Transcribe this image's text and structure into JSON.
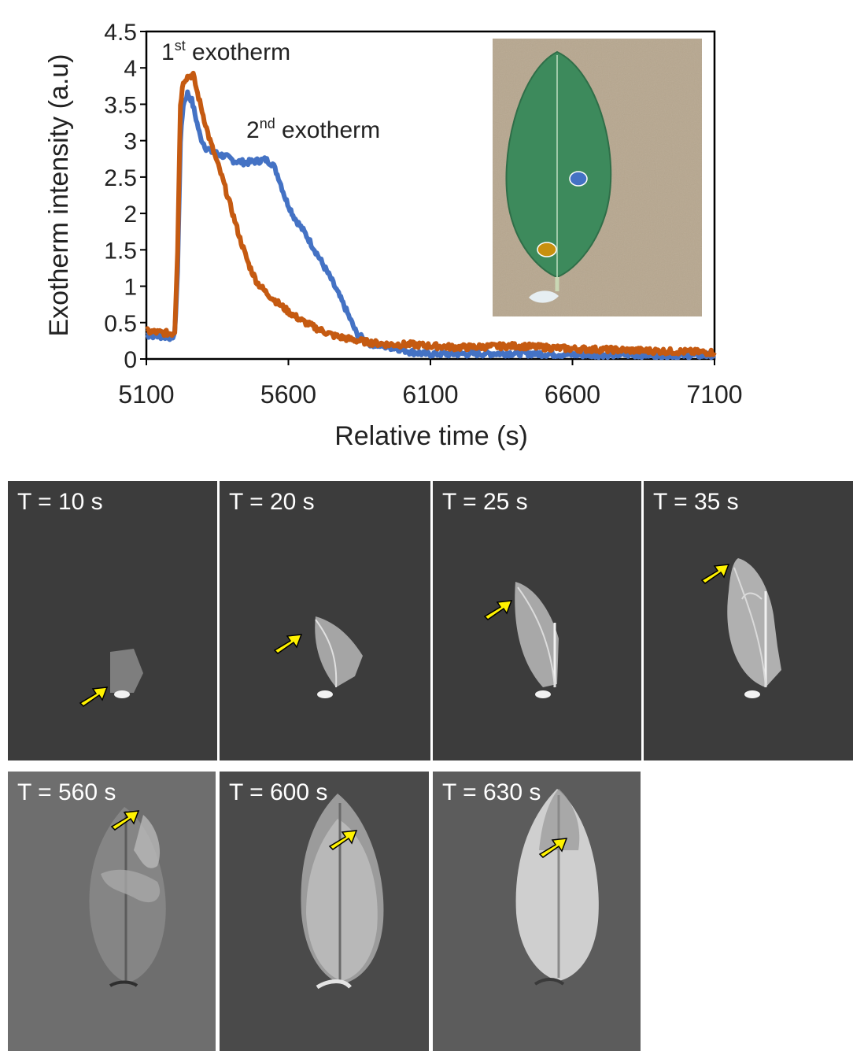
{
  "chart_data": {
    "type": "line",
    "xlabel": "Relative time (s)",
    "ylabel": "Exotherm intensity (a.u)",
    "xlim": [
      5100,
      7100
    ],
    "ylim": [
      0,
      4.5
    ],
    "x_ticks": [
      "5100",
      "5600",
      "6100",
      "6600",
      "7100"
    ],
    "y_ticks": [
      "0",
      "0.5",
      "1",
      "1.5",
      "2",
      "2.5",
      "3",
      "3.5",
      "4",
      "4.5"
    ],
    "annotations": {
      "first_base": "1",
      "first_sup": "st",
      "first_rest": " exotherm",
      "second_base": "2",
      "second_sup": "nd",
      "second_rest": " exotherm"
    },
    "series": [
      {
        "color": "#4472C4",
        "x": [
          5100,
          5190,
          5200,
          5210,
          5220,
          5230,
          5245,
          5260,
          5275,
          5290,
          5310,
          5330,
          5350,
          5380,
          5410,
          5450,
          5490,
          5520,
          5545,
          5565,
          5590,
          5620,
          5660,
          5700,
          5750,
          5800,
          5840,
          5880,
          5930,
          5980,
          6030,
          6080,
          6200,
          6400,
          6600,
          6800,
          7000,
          7100
        ],
        "y": [
          0.33,
          0.3,
          0.35,
          1.2,
          3.0,
          3.5,
          3.65,
          3.55,
          3.3,
          3.05,
          2.9,
          2.85,
          2.82,
          2.78,
          2.72,
          2.7,
          2.72,
          2.74,
          2.68,
          2.5,
          2.2,
          1.95,
          1.72,
          1.45,
          1.1,
          0.7,
          0.35,
          0.22,
          0.18,
          0.15,
          0.1,
          0.07,
          0.07,
          0.08,
          0.06,
          0.06,
          0.05,
          0.05
        ]
      },
      {
        "color": "#C55A11",
        "x": [
          5100,
          5190,
          5200,
          5210,
          5220,
          5230,
          5245,
          5265,
          5280,
          5300,
          5320,
          5345,
          5370,
          5400,
          5430,
          5460,
          5490,
          5520,
          5560,
          5600,
          5650,
          5700,
          5760,
          5820,
          5880,
          5950,
          6030,
          6100,
          6200,
          6400,
          6600,
          6800,
          7000,
          7100
        ],
        "y": [
          0.38,
          0.35,
          0.38,
          1.5,
          3.5,
          3.82,
          3.88,
          3.9,
          3.65,
          3.35,
          3.05,
          2.75,
          2.45,
          2.05,
          1.65,
          1.3,
          1.05,
          0.92,
          0.78,
          0.65,
          0.52,
          0.42,
          0.32,
          0.27,
          0.23,
          0.2,
          0.2,
          0.18,
          0.16,
          0.18,
          0.14,
          0.12,
          0.1,
          0.09
        ]
      }
    ]
  },
  "inset": {
    "description_icon": "leaf-photo",
    "marker_colors": [
      "#4472C4",
      "#C8900F"
    ]
  },
  "panels": [
    {
      "label": "T = 10 s"
    },
    {
      "label": "T = 20 s"
    },
    {
      "label": "T = 25 s"
    },
    {
      "label": "T = 35 s"
    },
    {
      "label": "T = 560 s"
    },
    {
      "label": "T = 600 s"
    },
    {
      "label": "T = 630 s"
    }
  ],
  "colors": {
    "arrow": "#FFF200",
    "blue_series": "#4472C4",
    "orange_series": "#C55A11"
  }
}
